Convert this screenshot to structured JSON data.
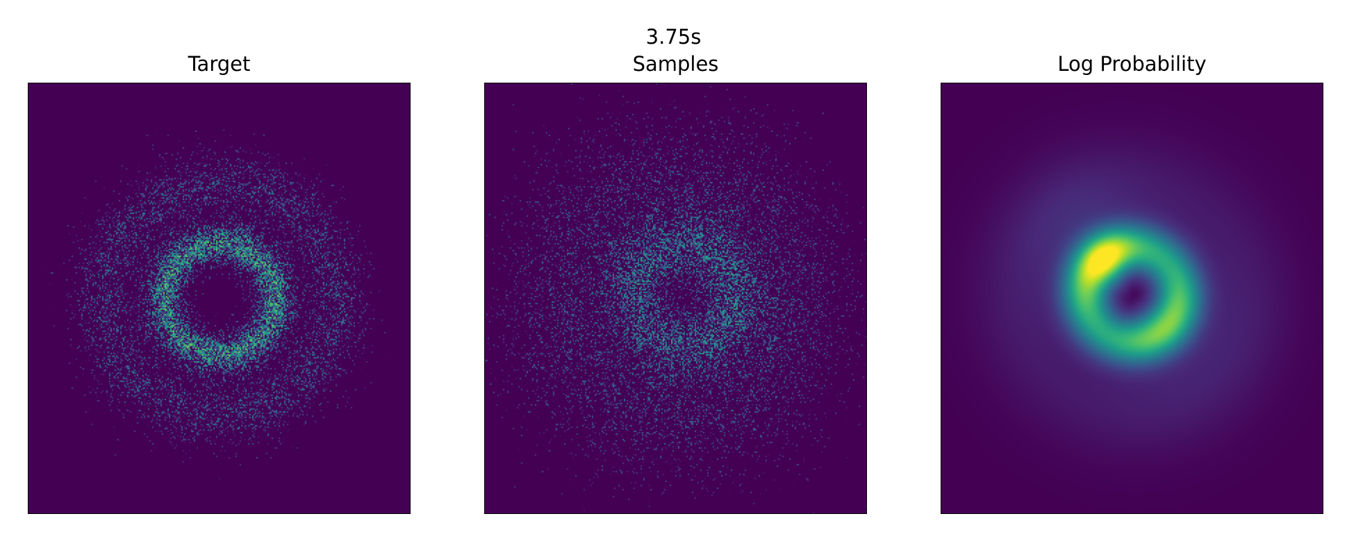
{
  "figure": {
    "suptitle": "3.75s"
  },
  "colors": {
    "background": "#ffffff",
    "colormap": "viridis",
    "colormap_low": "#440154",
    "colormap_high": "#fde725",
    "frame": "#000000"
  },
  "chart_data": [
    {
      "type": "heatmap",
      "title": "Target",
      "xlabel": "",
      "ylabel": "",
      "axes_ticks": "none",
      "colormap": "viridis",
      "description_of_density": "two concentric noisy rings",
      "rings": [
        {
          "center": [
            0,
            0
          ],
          "radius": 0.3,
          "width": 0.05,
          "relative_peak_density": 0.35
        },
        {
          "center": [
            0,
            0
          ],
          "radius": 0.145,
          "width": 0.035,
          "relative_peak_density": 1.0
        }
      ]
    },
    {
      "type": "heatmap",
      "title": "Samples",
      "xlabel": "",
      "ylabel": "",
      "axes_ticks": "none",
      "colormap": "viridis",
      "description_of_density": "diffuse noisy samples approximating the rings",
      "rings": [
        {
          "center": [
            0,
            0
          ],
          "radius": 0.28,
          "width": 0.11,
          "relative_peak_density": 0.25
        },
        {
          "center": [
            0.02,
            -0.01
          ],
          "radius": 0.12,
          "width": 0.06,
          "relative_peak_density": 0.6
        }
      ]
    },
    {
      "type": "heatmap",
      "title": "Log Probability",
      "xlabel": "",
      "ylabel": "",
      "axes_ticks": "none",
      "colormap": "viridis",
      "description_of_density": "smooth density, bright inner ring with faint outer halo",
      "rings": [
        {
          "center": [
            0,
            0
          ],
          "radius": 0.27,
          "width": 0.1,
          "relative_peak_density": 0.12
        },
        {
          "center": [
            0,
            -0.01
          ],
          "radius": 0.12,
          "width": 0.045,
          "relative_peak_density": 1.0
        }
      ],
      "hotspot": {
        "angle_deg": 125,
        "relative_peak_density": 1.0
      }
    }
  ]
}
